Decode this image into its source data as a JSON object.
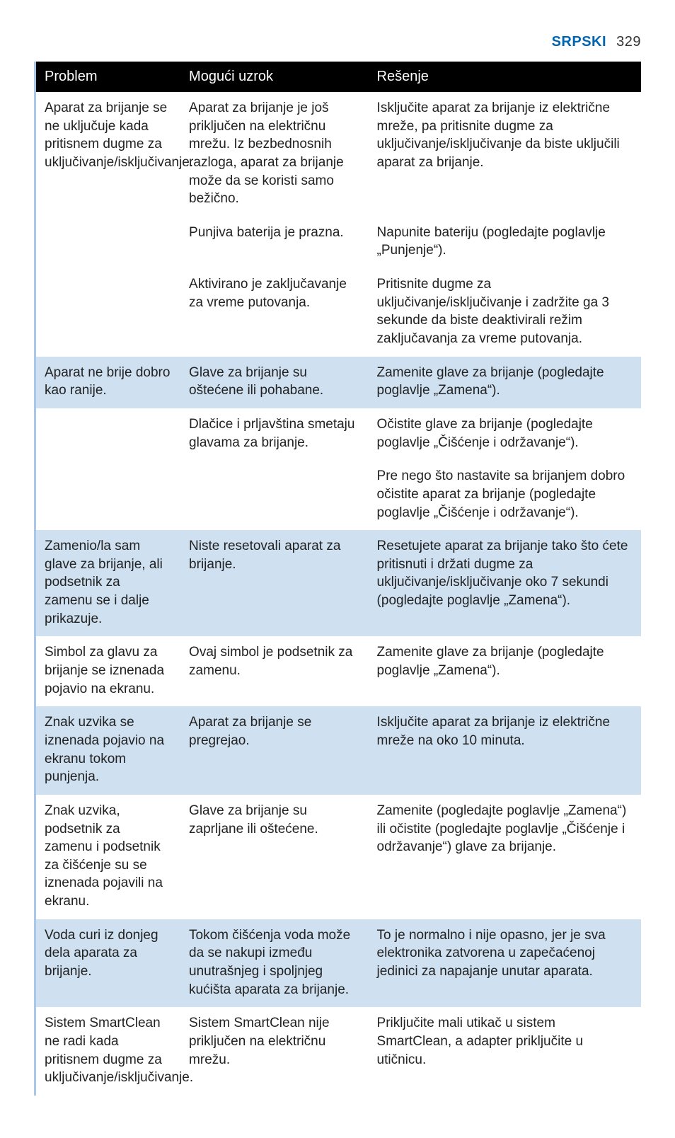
{
  "header": {
    "language_label": "Srpski",
    "page_number": "329"
  },
  "table": {
    "columns": [
      "Problem",
      "Mogući uzrok",
      "Rešenje"
    ],
    "col_widths_pct": [
      24,
      31,
      45
    ],
    "header_bg": "#000000",
    "header_fg": "#ffffff",
    "band_bg": "#cfe0f1",
    "plain_bg": "#ffffff",
    "left_rule_color": "#a9c7e8",
    "body_fontsize_pt": 14,
    "header_fontsize_pt": 15,
    "rows": [
      {
        "band": false,
        "problem": "Aparat za brijanje se ne uključuje kada pritisnem dugme za uključivanje/isključivanje.",
        "cause": "Aparat za brijanje je još priključen na električnu mrežu. Iz bezbednosnih razloga, aparat za brijanje može da se koristi samo bežično.",
        "solution": "Isključite aparat za brijanje iz električne mreže, pa pritisnite dugme za uključivanje/isključivanje da biste uključili aparat za brijanje."
      },
      {
        "band": false,
        "problem": "",
        "cause": "Punjiva baterija je prazna.",
        "solution": "Napunite bateriju (pogledajte poglavlje „Punjenje“)."
      },
      {
        "band": false,
        "problem": "",
        "cause": "Aktivirano je zaključavanje za vreme putovanja.",
        "solution": "Pritisnite dugme za uključivanje/isključivanje i zadržite ga 3 sekunde da biste deaktivirali režim zaključavanja za vreme putovanja."
      },
      {
        "band": true,
        "problem": "Aparat ne brije dobro kao ranije.",
        "cause": "Glave za brijanje su oštećene ili pohabane.",
        "solution": "Zamenite glave za brijanje (pogledajte poglavlje „Zamena“)."
      },
      {
        "band": false,
        "problem": "",
        "cause": "Dlačice i prljavština smetaju glavama za brijanje.",
        "solution": "Očistite glave za brijanje (pogledajte poglavlje „Čišćenje i održavanje“)."
      },
      {
        "band": false,
        "problem": "",
        "cause": "",
        "solution": "Pre nego što nastavite sa brijanjem dobro očistite aparat za brijanje (pogledajte poglavlje „Čišćenje i održavanje“)."
      },
      {
        "band": true,
        "problem": "Zamenio/la sam glave za brijanje, ali podsetnik za zamenu se i dalje prikazuje.",
        "cause": "Niste resetovali aparat za brijanje.",
        "solution": "Resetujete aparat za brijanje tako što ćete pritisnuti i držati dugme za uključivanje/isključivanje oko 7 sekundi (pogledajte poglavlje „Zamena“)."
      },
      {
        "band": false,
        "problem": "Simbol za glavu za brijanje se iznenada pojavio na ekranu.",
        "cause": "Ovaj simbol je podsetnik za zamenu.",
        "solution": "Zamenite glave za brijanje (pogledajte poglavlje „Zamena“)."
      },
      {
        "band": true,
        "problem": "Znak uzvika se iznenada pojavio na ekranu tokom punjenja.",
        "cause": "Aparat za brijanje se pregrejao.",
        "solution": "Isključite aparat za brijanje iz električne mreže na oko 10 minuta."
      },
      {
        "band": false,
        "problem": "Znak uzvika, podsetnik za zamenu i podsetnik za čišćenje su se iznenada pojavili na ekranu.",
        "cause": "Glave za brijanje su zaprljane ili oštećene.",
        "solution": "Zamenite (pogledajte poglavlje „Zamena“) ili očistite (pogledajte poglavlje „Čišćenje i održavanje“) glave za brijanje."
      },
      {
        "band": true,
        "problem": "Voda curi iz donjeg dela aparata za brijanje.",
        "cause": "Tokom čišćenja voda može da se nakupi između unutrašnjeg i spoljnjeg kućišta aparata za brijanje.",
        "solution": "To je normalno i nije opasno, jer je sva elektronika zatvorena u zapečaćenoj jedinici za napajanje unutar aparata."
      },
      {
        "band": false,
        "problem": "Sistem SmartClean ne radi kada pritisnem dugme za uključivanje/isključivanje.",
        "cause": "Sistem SmartClean nije priključen na električnu mrežu.",
        "solution": "Priključite mali utikač u sistem SmartClean, a adapter priključite u utičnicu."
      }
    ]
  }
}
